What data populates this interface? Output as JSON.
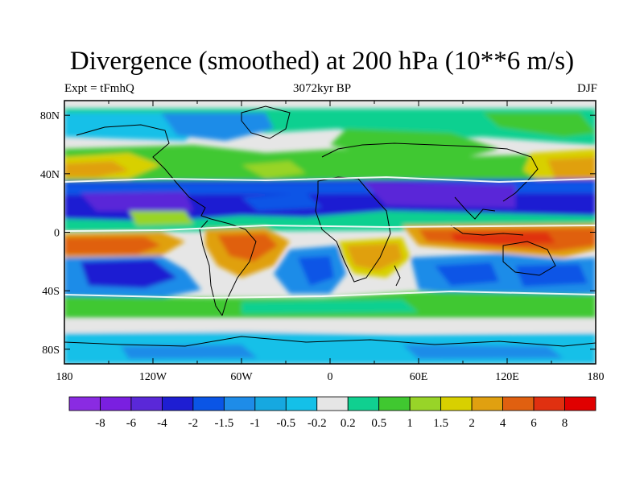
{
  "title": "Divergence (smoothed) at 200 hPa (10**6 m/s)",
  "left_label": "Expt = tFmhQ",
  "center_label": "3072kyr BP",
  "right_label": "DJF",
  "chart_data": {
    "type": "heatmap",
    "title": "Divergence (smoothed) at 200 hPa (10**6 m/s)",
    "x_ticks": [
      "180",
      "120W",
      "60W",
      "0",
      "60E",
      "120E",
      "180"
    ],
    "y_ticks": [
      "80N",
      "40N",
      "0",
      "40S",
      "80S"
    ],
    "lon_range": [
      -180,
      180
    ],
    "lat_range": [
      -90,
      90
    ],
    "colorbar_labels": [
      "-8",
      "-6",
      "-4",
      "-2",
      "-1.5",
      "-1",
      "-0.5",
      "-0.2",
      "0.2",
      "0.5",
      "1",
      "1.5",
      "2",
      "4",
      "6",
      "8"
    ],
    "colorbar_colors": [
      "#8a2be2",
      "#7a1fe0",
      "#5a28d8",
      "#1e1ed2",
      "#0a55e6",
      "#1e8ce8",
      "#16a8e0",
      "#14c0e8",
      "#e6e6e6",
      "#10d090",
      "#40c830",
      "#98d428",
      "#d8d000",
      "#e0a010",
      "#e06010",
      "#e03010",
      "#e00000"
    ]
  }
}
